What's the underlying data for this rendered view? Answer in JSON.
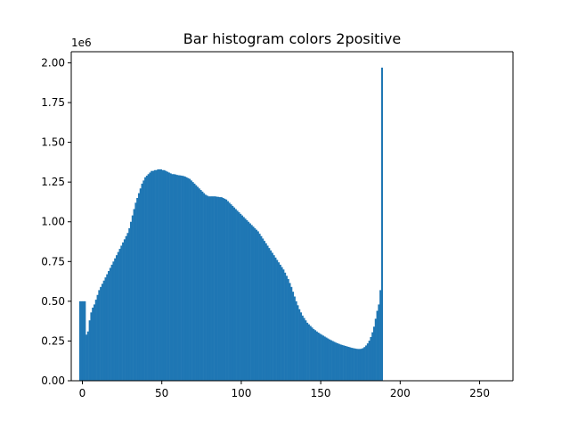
{
  "chart_data": {
    "type": "bar",
    "title": "Bar histogram colors 2positive",
    "xlabel": "",
    "ylabel": "",
    "y_offset_text": "1e6",
    "xlim": [
      -7,
      271
    ],
    "ylim": [
      0,
      2070000
    ],
    "x_ticks": [
      0,
      50,
      100,
      150,
      200,
      250
    ],
    "x_tick_labels": [
      "0",
      "50",
      "100",
      "150",
      "200",
      "250"
    ],
    "y_ticks": [
      0,
      250000,
      500000,
      750000,
      1000000,
      1250000,
      1500000,
      1750000,
      2000000
    ],
    "y_tick_labels": [
      "0.00",
      "0.25",
      "0.50",
      "0.75",
      "1.00",
      "1.25",
      "1.50",
      "1.75",
      "2.00"
    ],
    "bar_color": "#1f77b4",
    "grid": false,
    "bins": {
      "bin_start": -2,
      "bin_width": 1,
      "values": [
        500000,
        500000,
        500000,
        500000,
        290000,
        310000,
        380000,
        430000,
        460000,
        480000,
        510000,
        540000,
        570000,
        590000,
        610000,
        630000,
        650000,
        670000,
        690000,
        710000,
        730000,
        750000,
        770000,
        790000,
        810000,
        830000,
        850000,
        870000,
        890000,
        910000,
        930000,
        960000,
        1000000,
        1040000,
        1080000,
        1120000,
        1150000,
        1180000,
        1210000,
        1240000,
        1260000,
        1280000,
        1290000,
        1300000,
        1310000,
        1320000,
        1320000,
        1325000,
        1325000,
        1330000,
        1330000,
        1330000,
        1325000,
        1325000,
        1320000,
        1315000,
        1310000,
        1305000,
        1300000,
        1300000,
        1298000,
        1295000,
        1293000,
        1292000,
        1290000,
        1288000,
        1285000,
        1280000,
        1275000,
        1270000,
        1260000,
        1250000,
        1240000,
        1230000,
        1220000,
        1210000,
        1200000,
        1190000,
        1180000,
        1170000,
        1165000,
        1160000,
        1160000,
        1160000,
        1160000,
        1160000,
        1158000,
        1157000,
        1155000,
        1155000,
        1150000,
        1145000,
        1140000,
        1130000,
        1120000,
        1110000,
        1100000,
        1090000,
        1080000,
        1070000,
        1060000,
        1050000,
        1040000,
        1030000,
        1020000,
        1010000,
        1000000,
        990000,
        980000,
        970000,
        960000,
        950000,
        940000,
        925000,
        910000,
        895000,
        880000,
        865000,
        850000,
        835000,
        820000,
        805000,
        790000,
        775000,
        760000,
        745000,
        730000,
        715000,
        700000,
        680000,
        660000,
        640000,
        615000,
        590000,
        560000,
        530000,
        500000,
        475000,
        450000,
        430000,
        410000,
        395000,
        380000,
        365000,
        355000,
        345000,
        335000,
        325000,
        318000,
        310000,
        303000,
        296000,
        290000,
        284000,
        278000,
        272000,
        266000,
        260000,
        255000,
        250000,
        245000,
        240000,
        236000,
        232000,
        228000,
        225000,
        222000,
        219000,
        216000,
        213000,
        210000,
        207000,
        205000,
        203000,
        201000,
        200000,
        200000,
        201000,
        205000,
        212000,
        222000,
        235000,
        252000,
        275000,
        305000,
        340000,
        390000,
        440000,
        480000,
        570000,
        1970000
      ]
    }
  }
}
